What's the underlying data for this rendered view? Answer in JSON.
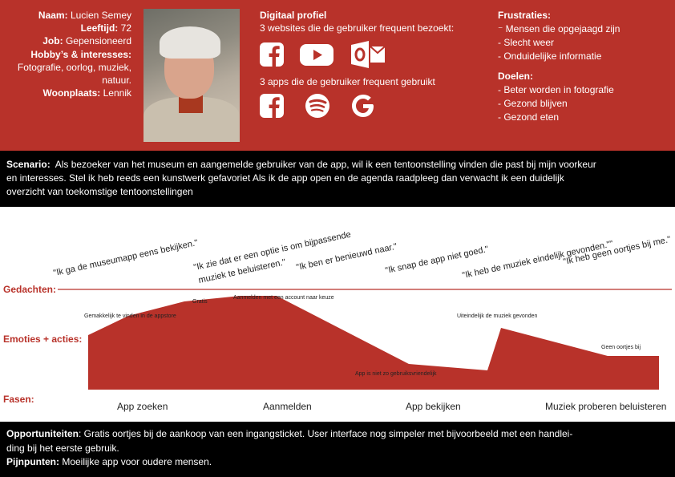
{
  "colors": {
    "accent": "#b8322a",
    "dark": "#000000",
    "light": "#ffffff"
  },
  "profile": {
    "rows": [
      {
        "label": "Naam:",
        "value": "Lucien Semey"
      },
      {
        "label": "Leeftijd:",
        "value": "72"
      },
      {
        "label": "Job:",
        "value": "Gepensioneerd"
      },
      {
        "label": "Hobby’s & interesses:",
        "value": ""
      },
      {
        "label": "",
        "value": "Fotografie, oorlog, muziek,"
      },
      {
        "label": "",
        "value": "natuur."
      },
      {
        "label": "Woonplaats:",
        "value": "Lennik"
      }
    ]
  },
  "digital": {
    "title": "Digitaal profiel",
    "websites_text": "3 websites die de gebruiker frequent bezoekt:",
    "apps_text": "3 apps die de gebruiker frequent gebruikt",
    "website_icons": [
      "facebook-icon",
      "youtube-icon",
      "outlook-icon"
    ],
    "app_icons": [
      "facebook-icon",
      "spotify-icon",
      "google-icon"
    ]
  },
  "frustrations": {
    "title": "Frustraties:",
    "items": [
      "⁻ Mensen die opgejaagd zijn",
      "- Slecht weer",
      "- Onduidelijke informatie"
    ]
  },
  "goals": {
    "title": "Doelen:",
    "items": [
      "- Beter worden in fotografie",
      "- Gezond blijven",
      "- Gezond eten"
    ]
  },
  "scenario": {
    "label": "Scenario:",
    "lines": [
      "Als bezoeker van het museum en aangemelde gebruiker van de app, wil ik een tentoonstelling vinden die past bij mijn voorkeur",
      "en interesses. Stel ik heb reeds een kunstwerk gefavoriet Als ik de app open en de agenda raadpleeg dan verwacht ik een duidelijk",
      "overzicht van toekomstige tentoonstellingen"
    ]
  },
  "journey": {
    "lanes": {
      "thoughts": "Gedachten:",
      "emotions": "Emoties + acties:",
      "phases": "Fasen:"
    },
    "thoughts": [
      "\"Ik ga de museumapp eens bekijken.\"",
      "\"Ik zie dat er een optie is om bijpassende",
      "muziek te beluisteren.\"",
      "\"Ik ben er benieuwd naar.\"",
      "\"Ik snap de app niet goed.\"",
      "\"Ik heb de muziek eindelijk gevonden.\"\"",
      "\"Ik heb geen oortjes bij me.\""
    ],
    "emotion_labels": [
      "Gemakkelijk te vinden in de appstore",
      "Gratis",
      "Aanmelden met een account naar keuze",
      "App is niet zo gebruiksvriendelijk",
      "Uiteindelijk de muziek gevonden",
      "Geen oortjes bij"
    ],
    "phases": [
      "App zoeken",
      "Aanmelden",
      "App bekijken",
      "Muziek proberen beluisteren"
    ]
  },
  "footer": {
    "opportunities_label": "Opportuniteiten",
    "opportunities_lines": [
      ":  Gratis oortjes bij de aankoop van een ingangsticket. User interface nog simpeler met bijvoorbeeld met een handlei-",
      "ding bij het eerste gebruik."
    ],
    "pain_label": "Pijnpunten:",
    "pain_text": "  Moeilijke app voor  oudere mensen."
  }
}
